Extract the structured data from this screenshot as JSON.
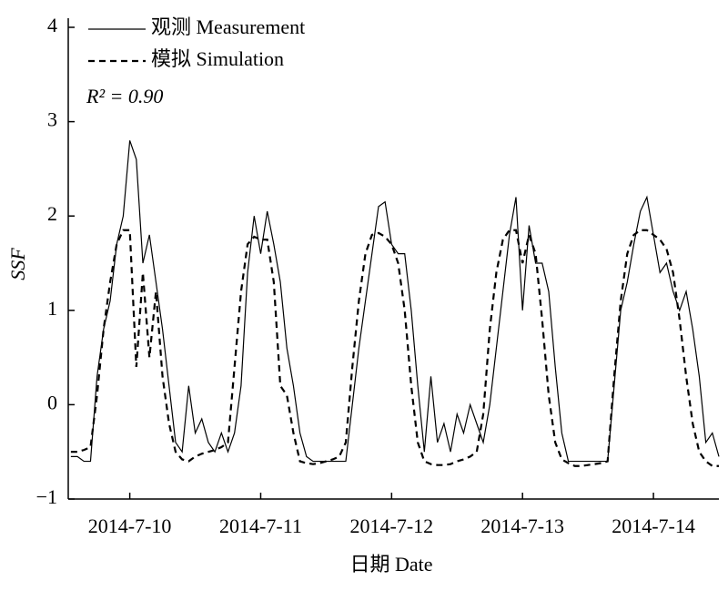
{
  "chart_data": {
    "type": "line",
    "y_label": "SSF",
    "x_label": "日期 Date",
    "annotation": "R² = 0.90",
    "xlim": [
      9.53,
      14.5
    ],
    "xticks": [
      {
        "value": 10,
        "label": "2014-7-10"
      },
      {
        "value": 11,
        "label": "2014-7-11"
      },
      {
        "value": 12,
        "label": "2014-7-12"
      },
      {
        "value": 13,
        "label": "2014-7-13"
      },
      {
        "value": 14,
        "label": "2014-7-14"
      }
    ],
    "ylim": [
      -1,
      4
    ],
    "yticks": [
      {
        "value": -1,
        "label": "−1"
      },
      0,
      1,
      2,
      3,
      4
    ],
    "x": [
      9.55,
      9.6,
      9.65,
      9.7,
      9.75,
      9.8,
      9.85,
      9.9,
      9.95,
      10.0,
      10.05,
      10.1,
      10.15,
      10.2,
      10.25,
      10.3,
      10.35,
      10.4,
      10.45,
      10.5,
      10.55,
      10.6,
      10.65,
      10.7,
      10.75,
      10.8,
      10.85,
      10.9,
      10.95,
      11.0,
      11.05,
      11.1,
      11.15,
      11.2,
      11.25,
      11.3,
      11.35,
      11.4,
      11.45,
      11.5,
      11.55,
      11.6,
      11.65,
      11.7,
      11.75,
      11.8,
      11.85,
      11.9,
      11.95,
      12.0,
      12.05,
      12.1,
      12.15,
      12.2,
      12.25,
      12.3,
      12.35,
      12.4,
      12.45,
      12.5,
      12.55,
      12.6,
      12.65,
      12.7,
      12.75,
      12.8,
      12.85,
      12.9,
      12.95,
      13.0,
      13.05,
      13.1,
      13.15,
      13.2,
      13.25,
      13.3,
      13.35,
      13.4,
      13.45,
      13.5,
      13.55,
      13.6,
      13.65,
      13.7,
      13.75,
      13.8,
      13.85,
      13.9,
      13.95,
      14.0,
      14.05,
      14.1,
      14.15,
      14.2,
      14.25,
      14.3,
      14.35,
      14.4,
      14.45,
      14.5
    ],
    "series": [
      {
        "name": "观测 Measurement",
        "color": "#000000",
        "dashed": false,
        "values": [
          -0.55,
          -0.55,
          -0.6,
          -0.6,
          0.3,
          0.8,
          1.1,
          1.7,
          2.0,
          2.8,
          2.6,
          1.5,
          1.8,
          1.3,
          0.8,
          0.2,
          -0.4,
          -0.5,
          0.2,
          -0.3,
          -0.15,
          -0.4,
          -0.5,
          -0.3,
          -0.5,
          -0.3,
          0.2,
          1.4,
          2.0,
          1.6,
          2.05,
          1.7,
          1.3,
          0.6,
          0.2,
          -0.3,
          -0.55,
          -0.6,
          -0.6,
          -0.6,
          -0.6,
          -0.6,
          -0.6,
          0.0,
          0.6,
          1.1,
          1.6,
          2.1,
          2.15,
          1.7,
          1.6,
          1.6,
          1.0,
          0.2,
          -0.5,
          0.3,
          -0.4,
          -0.2,
          -0.5,
          -0.1,
          -0.3,
          0.0,
          -0.2,
          -0.4,
          0.0,
          0.6,
          1.2,
          1.8,
          2.2,
          1.0,
          1.9,
          1.5,
          1.5,
          1.2,
          0.4,
          -0.3,
          -0.6,
          -0.6,
          -0.6,
          -0.6,
          -0.6,
          -0.6,
          -0.6,
          0.2,
          1.0,
          1.3,
          1.7,
          2.05,
          2.2,
          1.8,
          1.4,
          1.5,
          1.2,
          1.0,
          1.2,
          0.8,
          0.3,
          -0.4,
          -0.3,
          -0.55
        ]
      },
      {
        "name": "模拟 Simulation",
        "color": "#000000",
        "dashed": true,
        "values": [
          -0.5,
          -0.5,
          -0.48,
          -0.45,
          0.1,
          0.8,
          1.3,
          1.7,
          1.85,
          1.85,
          0.4,
          1.4,
          0.5,
          1.2,
          0.3,
          -0.2,
          -0.5,
          -0.58,
          -0.6,
          -0.55,
          -0.52,
          -0.5,
          -0.48,
          -0.45,
          -0.4,
          0.4,
          1.2,
          1.7,
          1.78,
          1.75,
          1.75,
          1.3,
          0.2,
          0.1,
          -0.3,
          -0.6,
          -0.62,
          -0.63,
          -0.62,
          -0.6,
          -0.58,
          -0.55,
          -0.4,
          0.4,
          1.1,
          1.6,
          1.8,
          1.82,
          1.78,
          1.7,
          1.5,
          1.0,
          0.2,
          -0.4,
          -0.6,
          -0.63,
          -0.64,
          -0.64,
          -0.63,
          -0.6,
          -0.58,
          -0.55,
          -0.5,
          -0.1,
          0.8,
          1.4,
          1.75,
          1.85,
          1.85,
          1.5,
          1.8,
          1.6,
          0.9,
          0.1,
          -0.4,
          -0.58,
          -0.62,
          -0.65,
          -0.65,
          -0.64,
          -0.63,
          -0.62,
          -0.6,
          0.3,
          1.1,
          1.6,
          1.8,
          1.85,
          1.85,
          1.8,
          1.75,
          1.65,
          1.4,
          0.9,
          0.3,
          -0.2,
          -0.5,
          -0.6,
          -0.65,
          -0.65
        ]
      }
    ]
  }
}
